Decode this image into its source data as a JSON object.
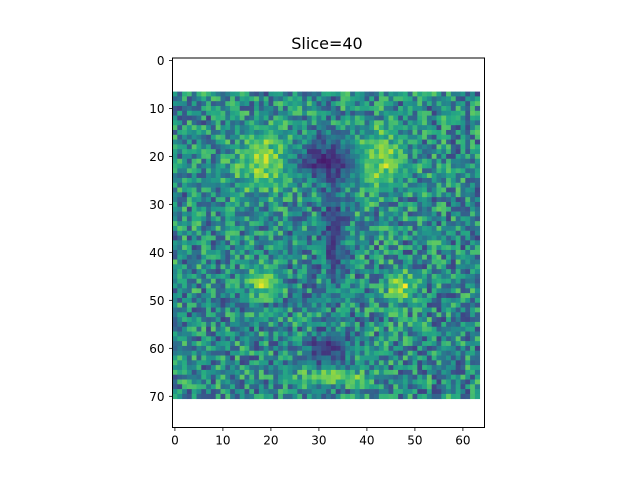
{
  "chart_data": {
    "type": "heatmap",
    "title": "Slice=40",
    "xlabel": "",
    "ylabel": "",
    "colormap": "viridis",
    "grid": false,
    "x_ticks": [
      "0",
      "10",
      "20",
      "30",
      "40",
      "50",
      "60"
    ],
    "y_ticks": [
      "0",
      "10",
      "20",
      "30",
      "40",
      "50",
      "60",
      "70"
    ],
    "xlim": [
      -0.5,
      64.5
    ],
    "ylim": [
      76.5,
      -0.5
    ],
    "image": {
      "columns": 64,
      "rows": 77,
      "data_rows": [
        7,
        70
      ],
      "upper_block_right_edge": 64.5,
      "upper_block_bottom_row": 30,
      "lower_block_right_edge": 63.5,
      "background_value": 0.48
    },
    "bright_regions": [
      {
        "label": "upper-left arc",
        "cx": 19,
        "cy": 21,
        "rx": 6,
        "ry": 6,
        "value": 0.95
      },
      {
        "label": "upper-right arc",
        "cx": 42,
        "cy": 21,
        "rx": 6,
        "ry": 6,
        "value": 0.95
      },
      {
        "label": "left mid",
        "cx": 18,
        "cy": 46,
        "rx": 3,
        "ry": 3,
        "value": 0.95
      },
      {
        "label": "right mid",
        "cx": 47,
        "cy": 47,
        "rx": 3,
        "ry": 3,
        "value": 0.95
      },
      {
        "label": "lower arc",
        "cx": 33,
        "cy": 66,
        "rx": 7,
        "ry": 1.5,
        "value": 0.9
      }
    ],
    "dark_regions": [
      {
        "label": "upper center",
        "cx": 32,
        "cy": 21,
        "rx": 7,
        "ry": 4,
        "value": 0.05
      },
      {
        "label": "center column",
        "cx": 33,
        "cy": 36,
        "rx": 2,
        "ry": 10,
        "value": 0.12
      },
      {
        "label": "lower center",
        "cx": 32,
        "cy": 60,
        "rx": 4,
        "ry": 3,
        "value": 0.1
      }
    ]
  }
}
